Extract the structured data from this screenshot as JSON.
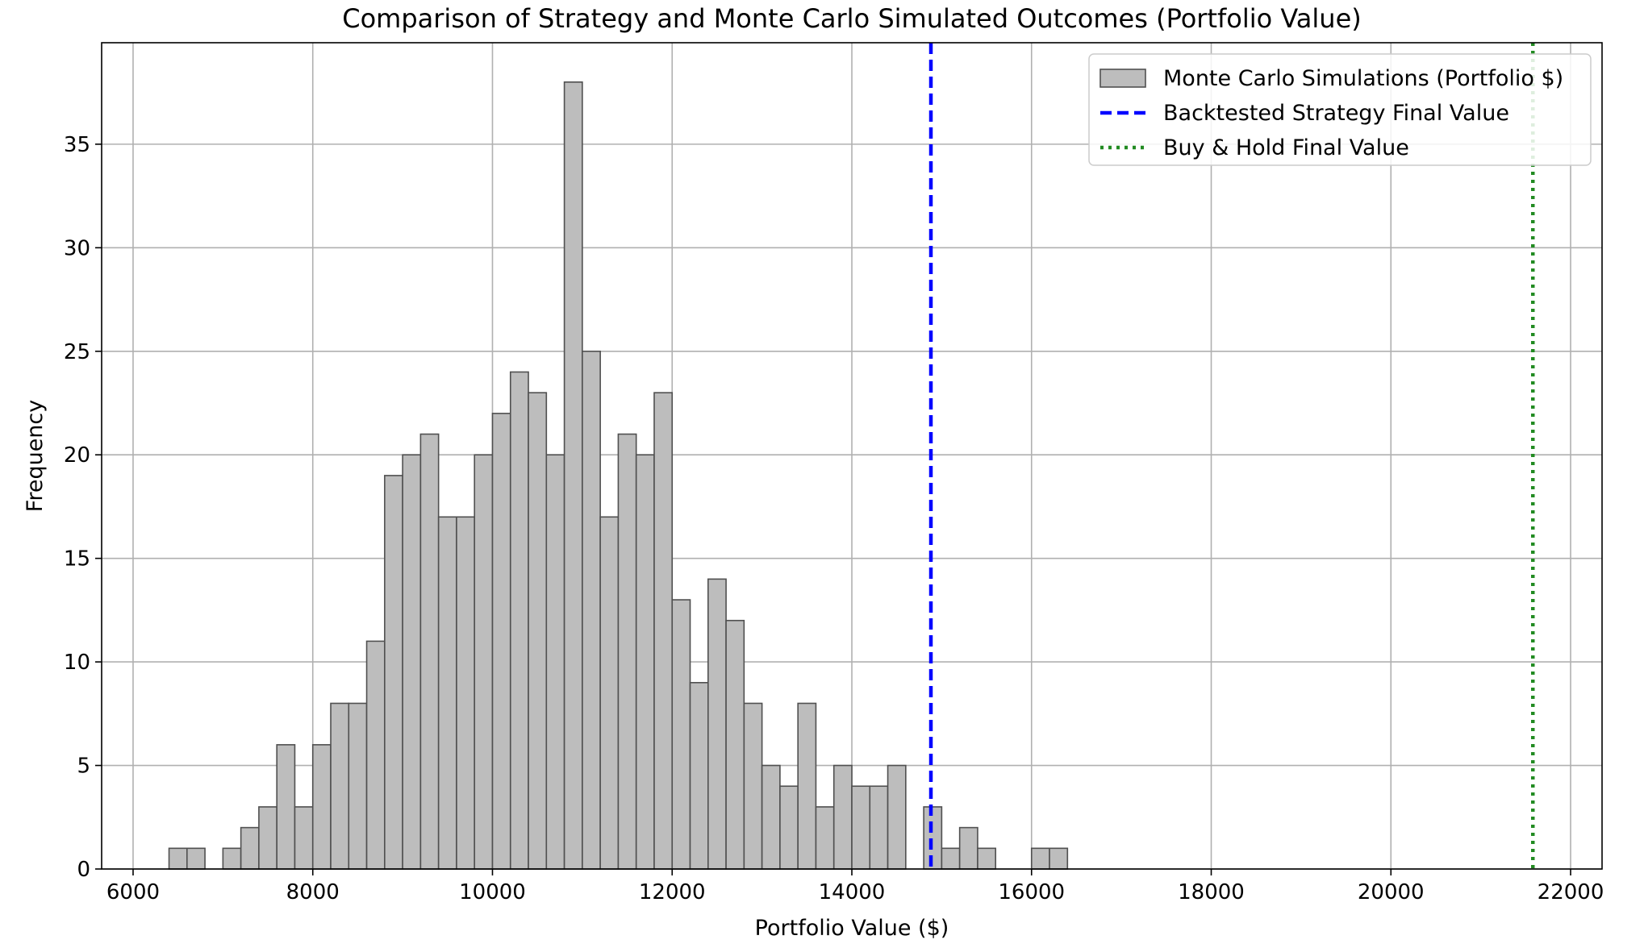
{
  "chart_data": {
    "type": "bar",
    "title": "Comparison of Strategy and Monte Carlo Simulated Outcomes (Portfolio Value)",
    "xlabel": "Portfolio Value ($)",
    "ylabel": "Frequency",
    "xlim": [
      5650,
      22350
    ],
    "ylim": [
      0,
      39.9
    ],
    "xticks": [
      6000,
      8000,
      10000,
      12000,
      14000,
      16000,
      18000,
      20000,
      22000
    ],
    "yticks": [
      0,
      5,
      10,
      15,
      20,
      25,
      30,
      35
    ],
    "grid": true,
    "legend_position": "top-right",
    "bin_start": 6400,
    "bin_width": 200,
    "counts": [
      1,
      1,
      0,
      1,
      2,
      3,
      6,
      3,
      6,
      8,
      8,
      11,
      19,
      20,
      21,
      17,
      17,
      20,
      22,
      24,
      23,
      20,
      38,
      25,
      17,
      21,
      20,
      23,
      13,
      9,
      14,
      12,
      8,
      5,
      4,
      8,
      3,
      5,
      4,
      4,
      5,
      0,
      3,
      1,
      2,
      1,
      0,
      0,
      1,
      1
    ],
    "series": [
      {
        "name": "Monte Carlo Simulations (Portfolio $)",
        "kind": "histogram",
        "color": "#bdbdbd",
        "edge_color": "#505050"
      },
      {
        "name": "Backtested Strategy Final Value",
        "kind": "vline",
        "x": 14880,
        "color": "#0000ff",
        "style": "dashed"
      },
      {
        "name": "Buy & Hold Final Value",
        "kind": "vline",
        "x": 21580,
        "color": "#228b22",
        "style": "dotted"
      }
    ]
  }
}
